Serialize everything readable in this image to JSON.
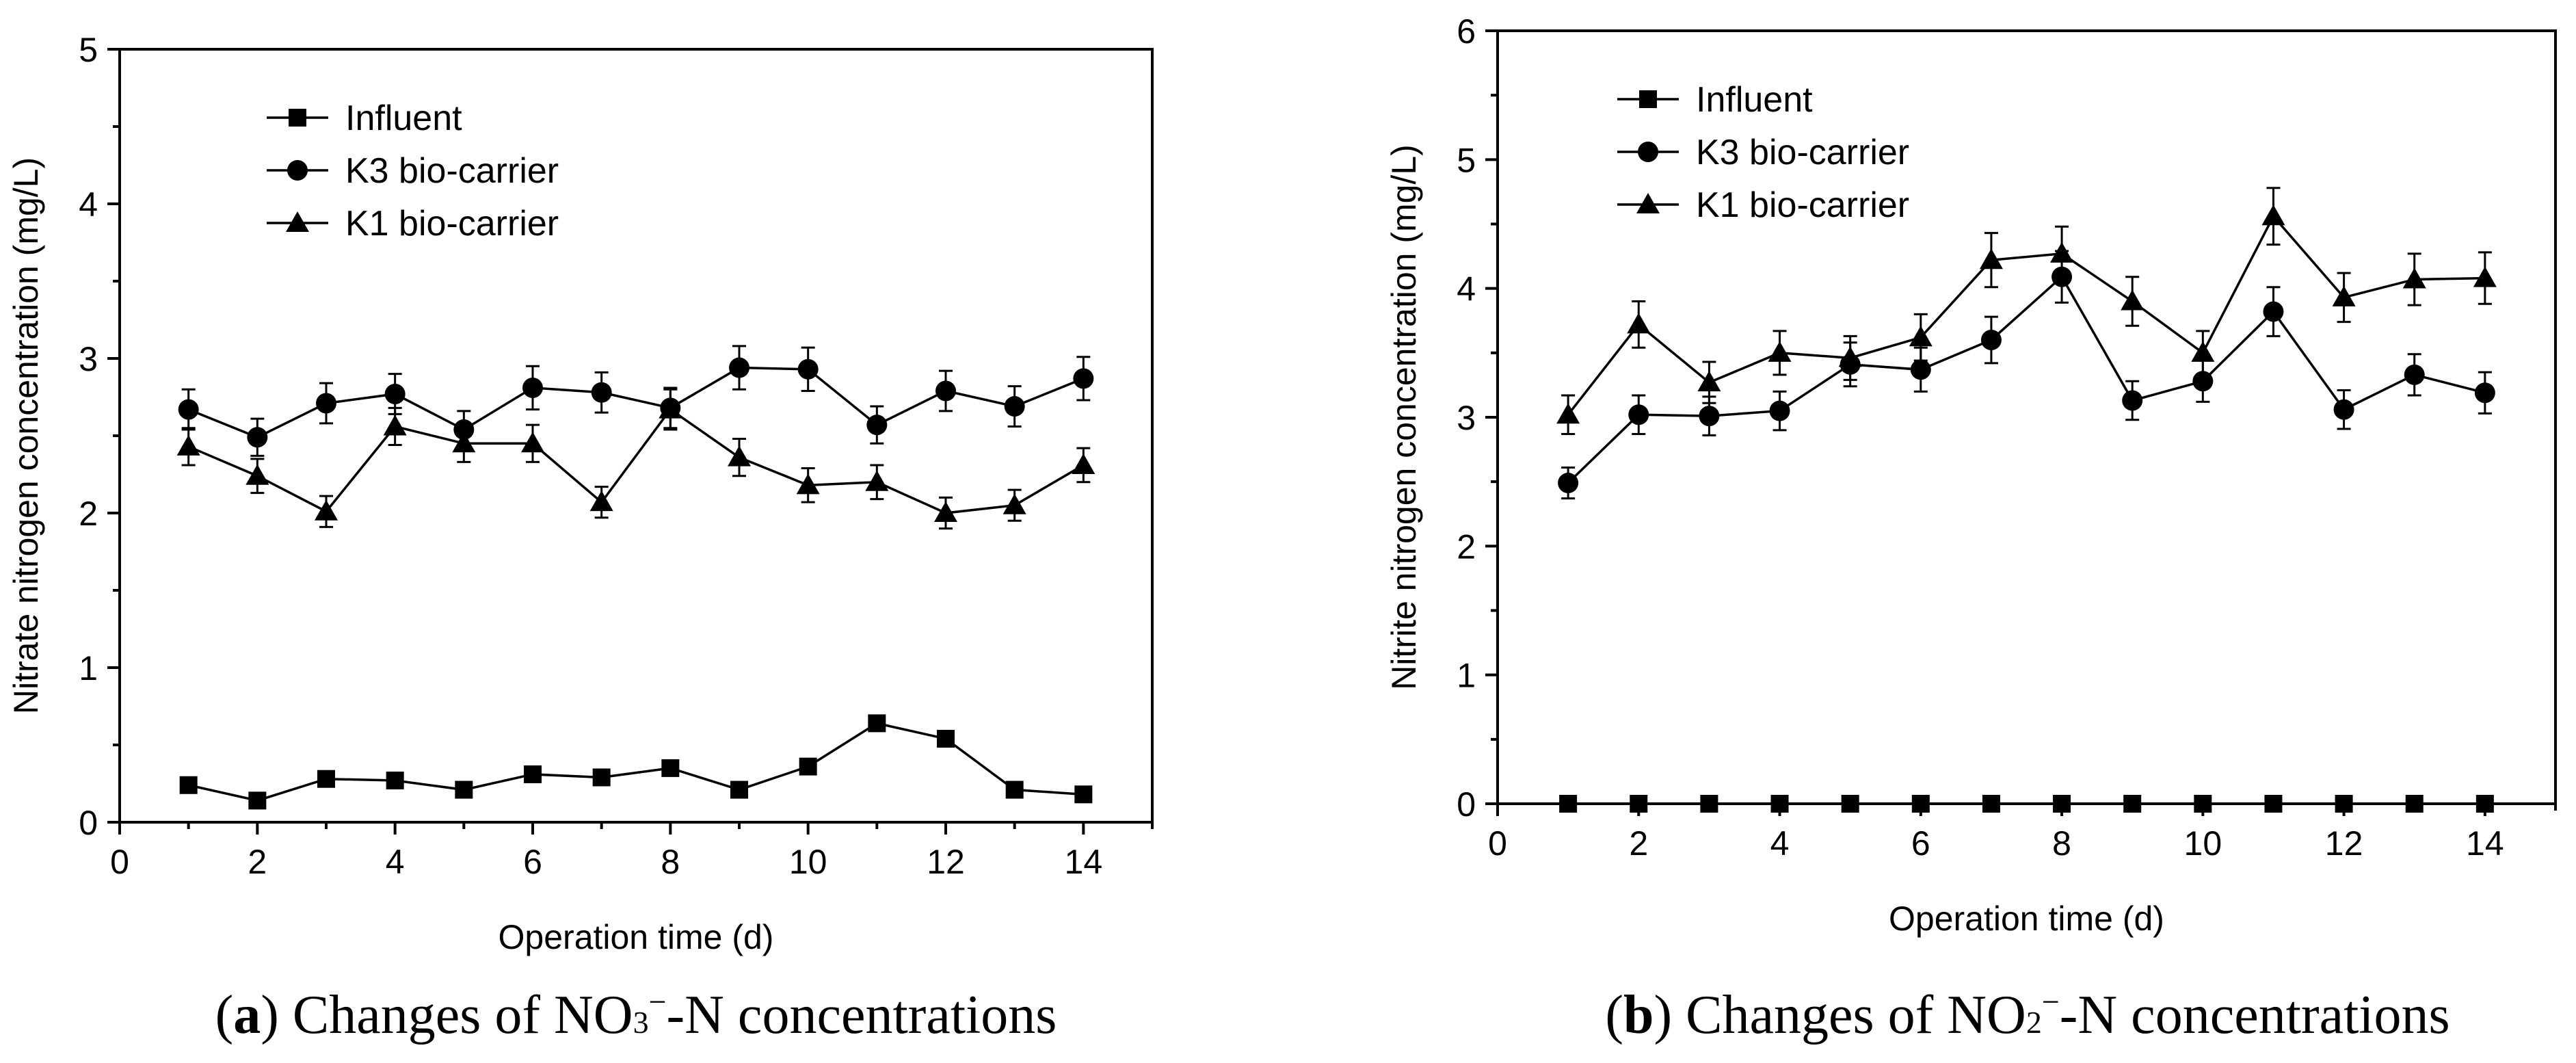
{
  "chart_data": [
    {
      "type": "line",
      "panel": "a",
      "caption": {
        "open": "(",
        "letter": "a",
        "close": ")",
        "text_before": " Changes of NO",
        "subscript": "3",
        "superscript": "−",
        "text_after": "-N concentrations"
      },
      "xlabel": "Operation time (d)",
      "ylabel": "Nitrate nitrogen concentration (mg/L)",
      "xlim": [
        0,
        15
      ],
      "ylim": [
        0,
        5
      ],
      "xticks": [
        "0",
        "2",
        "4",
        "6",
        "8",
        "10",
        "12",
        "14"
      ],
      "yticks": [
        "0",
        "1",
        "2",
        "3",
        "4",
        "5"
      ],
      "x": [
        1,
        2,
        3,
        4,
        5,
        6,
        7,
        8,
        9,
        10,
        11,
        12,
        13,
        14
      ],
      "series": [
        {
          "name": "Influent",
          "marker": "square",
          "values": [
            0.24,
            0.14,
            0.28,
            0.27,
            0.21,
            0.31,
            0.29,
            0.35,
            0.21,
            0.36,
            0.64,
            0.54,
            0.21,
            0.18
          ],
          "errors": []
        },
        {
          "name": "K3 bio-carrier",
          "marker": "circle",
          "values": [
            2.67,
            2.49,
            2.71,
            2.77,
            2.54,
            2.81,
            2.78,
            2.68,
            2.94,
            2.93,
            2.57,
            2.79,
            2.69,
            2.87
          ],
          "errors": [
            0.13,
            0.12,
            0.13,
            0.13,
            0.12,
            0.14,
            0.13,
            0.13,
            0.14,
            0.14,
            0.12,
            0.13,
            0.13,
            0.14
          ]
        },
        {
          "name": "K1 bio-carrier",
          "marker": "triangle",
          "values": [
            2.43,
            2.24,
            2.01,
            2.56,
            2.45,
            2.45,
            2.07,
            2.67,
            2.36,
            2.18,
            2.2,
            2.0,
            2.05,
            2.31
          ],
          "errors": [
            0.12,
            0.11,
            0.1,
            0.12,
            0.12,
            0.12,
            0.1,
            0.13,
            0.12,
            0.11,
            0.11,
            0.1,
            0.1,
            0.11
          ]
        }
      ],
      "legend_position": "top-left"
    },
    {
      "type": "line",
      "panel": "b",
      "caption": {
        "open": "(",
        "letter": "b",
        "close": ")",
        "text_before": " Changes of NO",
        "subscript": "2",
        "superscript": "−",
        "text_after": "-N concentrations"
      },
      "xlabel": "Operation time (d)",
      "ylabel": "Nitrite nitrogen concentration (mg/L)",
      "xlim": [
        0,
        15
      ],
      "ylim": [
        0,
        6
      ],
      "xticks": [
        "0",
        "2",
        "4",
        "6",
        "8",
        "10",
        "12",
        "14"
      ],
      "yticks": [
        "0",
        "1",
        "2",
        "3",
        "4",
        "5",
        "6"
      ],
      "x": [
        1,
        2,
        3,
        4,
        5,
        6,
        7,
        8,
        9,
        10,
        11,
        12,
        13,
        14
      ],
      "series": [
        {
          "name": "Influent",
          "marker": "square",
          "values": [
            0,
            0,
            0,
            0,
            0,
            0,
            0,
            0,
            0,
            0,
            0,
            0,
            0,
            0
          ],
          "errors": []
        },
        {
          "name": "K3 bio-carrier",
          "marker": "circle",
          "values": [
            2.49,
            3.02,
            3.01,
            3.05,
            3.41,
            3.37,
            3.6,
            4.09,
            3.13,
            3.28,
            3.82,
            3.06,
            3.33,
            3.19
          ],
          "errors": [
            0.12,
            0.15,
            0.15,
            0.15,
            0.17,
            0.17,
            0.18,
            0.2,
            0.15,
            0.16,
            0.19,
            0.15,
            0.16,
            0.16
          ]
        },
        {
          "name": "K1 bio-carrier",
          "marker": "triangle",
          "values": [
            3.02,
            3.72,
            3.27,
            3.5,
            3.46,
            3.62,
            4.22,
            4.27,
            3.9,
            3.5,
            4.56,
            3.93,
            4.07,
            4.08
          ],
          "errors": [
            0.15,
            0.18,
            0.16,
            0.17,
            0.17,
            0.18,
            0.21,
            0.21,
            0.19,
            0.17,
            0.22,
            0.19,
            0.2,
            0.2
          ]
        }
      ],
      "legend_position": "top-left"
    }
  ]
}
